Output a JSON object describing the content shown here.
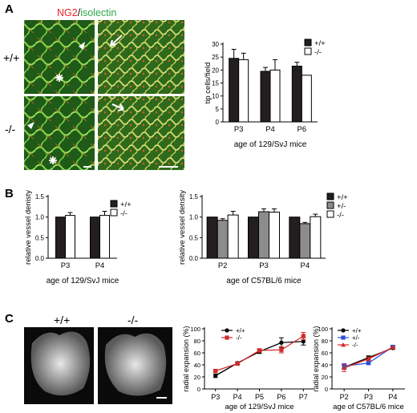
{
  "panel_letters": {
    "a": "A",
    "b": "B",
    "c": "C"
  },
  "panelA": {
    "stain_red": "NG2",
    "stain_sep": "/",
    "stain_green": "isolectin",
    "row_labels": [
      "+/+",
      "-/-"
    ],
    "colors": {
      "red": "#e8202a",
      "green": "#2fa84a"
    }
  },
  "panelC_images": {
    "labels": [
      "+/+",
      "-/-"
    ]
  },
  "chart_data": [
    {
      "id": "A-tip",
      "type": "bar",
      "ylabel": "tip cells/field",
      "xlabel": "age of 129/SvJ mice",
      "categories": [
        "P3",
        "P4",
        "P6"
      ],
      "ylim": [
        0,
        30
      ],
      "yticks": [
        0,
        5,
        10,
        15,
        20,
        25,
        30
      ],
      "series": [
        {
          "name": "+/+",
          "values": [
            24.5,
            19.5,
            21.5
          ],
          "err": [
            3.5,
            1.5,
            1.5
          ],
          "fill": "#231f20"
        },
        {
          "name": "-/-",
          "values": [
            24,
            20,
            18
          ],
          "err": [
            2.5,
            4,
            0
          ],
          "fill": "#ffffff"
        }
      ],
      "legend": "top-right"
    },
    {
      "id": "B-svj",
      "type": "bar",
      "ylabel": "relative vessel denisty",
      "xlabel": "age of 129/SvJ mice",
      "categories": [
        "P3",
        "P4"
      ],
      "ylim": [
        0,
        1.5
      ],
      "yticks": [
        0.0,
        0.5,
        1.0,
        1.5
      ],
      "series": [
        {
          "name": "+/+",
          "values": [
            1.0,
            1.0
          ],
          "err": [
            0,
            0
          ],
          "fill": "#231f20"
        },
        {
          "name": "-/-",
          "values": [
            1.04,
            1.04
          ],
          "err": [
            0.07,
            0.1
          ],
          "fill": "#ffffff"
        }
      ],
      "legend": "top-right"
    },
    {
      "id": "B-bl6",
      "type": "bar",
      "ylabel": "relative vessel density",
      "xlabel": "age of C57BL/6 mice",
      "categories": [
        "P2",
        "P3",
        "P4"
      ],
      "ylim": [
        0,
        1.5
      ],
      "yticks": [
        0.0,
        0.5,
        1.0,
        1.5
      ],
      "series": [
        {
          "name": "+/+",
          "values": [
            1.0,
            1.0,
            1.0
          ],
          "err": [
            0,
            0,
            0
          ],
          "fill": "#231f20"
        },
        {
          "name": "+/-",
          "values": [
            0.92,
            1.13,
            0.84
          ],
          "err": [
            0.04,
            0.07,
            0.03
          ],
          "fill": "#8c8c8c"
        },
        {
          "name": "-/-",
          "values": [
            1.05,
            1.12,
            1.01
          ],
          "err": [
            0.09,
            0.08,
            0.06
          ],
          "fill": "#ffffff"
        }
      ],
      "legend": "top-right"
    },
    {
      "id": "C-svj",
      "type": "line",
      "ylabel": "radial expansion (%)",
      "xlabel": "age of 129/SvJ mice",
      "categories": [
        "P3",
        "P4",
        "P5",
        "P6",
        "P7"
      ],
      "ylim": [
        0,
        100
      ],
      "yticks": [
        0,
        20,
        40,
        60,
        80,
        100
      ],
      "series": [
        {
          "name": "+/+",
          "values": [
            22,
            43,
            62,
            77,
            79
          ],
          "err": [
            3,
            2,
            3,
            8,
            6
          ],
          "color": "#000000",
          "marker": "circle"
        },
        {
          "name": "-/-",
          "values": [
            30,
            42,
            64,
            65,
            88
          ],
          "err": [
            2,
            2,
            3,
            5,
            6
          ],
          "color": "#d42a2a",
          "marker": "square"
        }
      ],
      "legend": "top-left"
    },
    {
      "id": "C-bl6",
      "type": "line",
      "ylabel": "radial expansion (%)",
      "xlabel": "age of C57BL/6 mice",
      "categories": [
        "P2",
        "P3",
        "P4"
      ],
      "ylim": [
        0,
        100
      ],
      "yticks": [
        0,
        20,
        40,
        60,
        80,
        100
      ],
      "series": [
        {
          "name": "+/+",
          "values": [
            36,
            52,
            68
          ],
          "err": [
            3,
            3,
            2
          ],
          "color": "#000000",
          "marker": "circle"
        },
        {
          "name": "+/-",
          "values": [
            38,
            43,
            70
          ],
          "err": [
            4,
            2,
            2
          ],
          "color": "#2a4fd8",
          "marker": "square"
        },
        {
          "name": "-/-",
          "values": [
            35,
            50,
            69
          ],
          "err": [
            6,
            3,
            2
          ],
          "color": "#d42a2a",
          "marker": "triangle"
        }
      ],
      "legend": "top-left"
    }
  ]
}
